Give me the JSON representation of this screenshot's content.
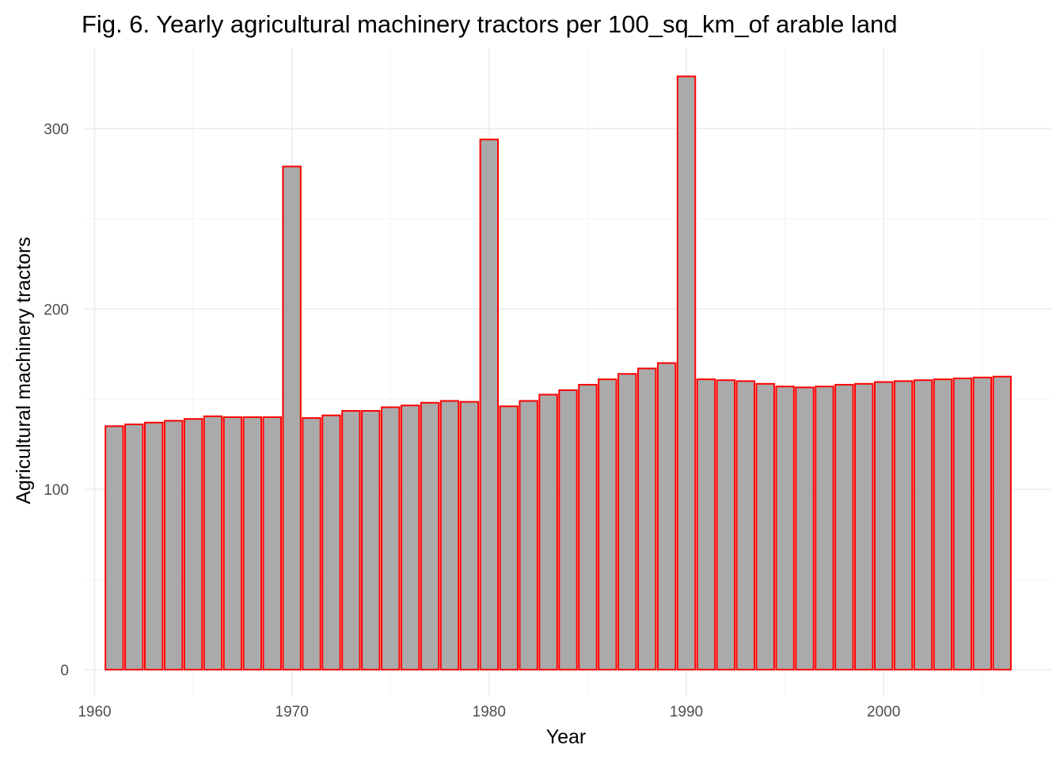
{
  "chart_data": {
    "type": "bar",
    "title": "Fig. 6. Yearly agricultural machinery tractors per 100_sq_km_of arable land",
    "xlabel": "Year",
    "ylabel": "Agricultural machinery tractors",
    "x": [
      1961,
      1962,
      1963,
      1964,
      1965,
      1966,
      1967,
      1968,
      1969,
      1970,
      1971,
      1972,
      1973,
      1974,
      1975,
      1976,
      1977,
      1978,
      1979,
      1980,
      1981,
      1982,
      1983,
      1984,
      1985,
      1986,
      1987,
      1988,
      1989,
      1990,
      1991,
      1992,
      1993,
      1994,
      1995,
      1996,
      1997,
      1998,
      1999,
      2000,
      2001,
      2002,
      2003,
      2004,
      2005,
      2006
    ],
    "values": [
      135,
      136,
      137,
      138,
      139,
      140.5,
      140,
      140,
      140,
      279,
      139.5,
      141,
      143.5,
      143.5,
      145.5,
      146.5,
      148,
      149,
      148.5,
      294,
      146,
      149,
      152.5,
      155,
      158,
      161,
      164,
      167,
      170,
      329,
      161,
      160.5,
      160,
      158.5,
      157,
      156.5,
      157,
      158,
      158.5,
      159.5,
      160,
      160.5,
      161,
      161.5,
      162,
      162.5
    ],
    "xlim": [
      1959.5,
      2008.5
    ],
    "ylim": [
      -15,
      345
    ],
    "x_ticks": [
      1960,
      1970,
      1980,
      1990,
      2000
    ],
    "y_ticks": [
      0,
      100,
      200,
      300
    ],
    "grid": true,
    "colors": {
      "bar_fill": "#aaaaaa",
      "bar_outline": "#ff0000"
    }
  }
}
